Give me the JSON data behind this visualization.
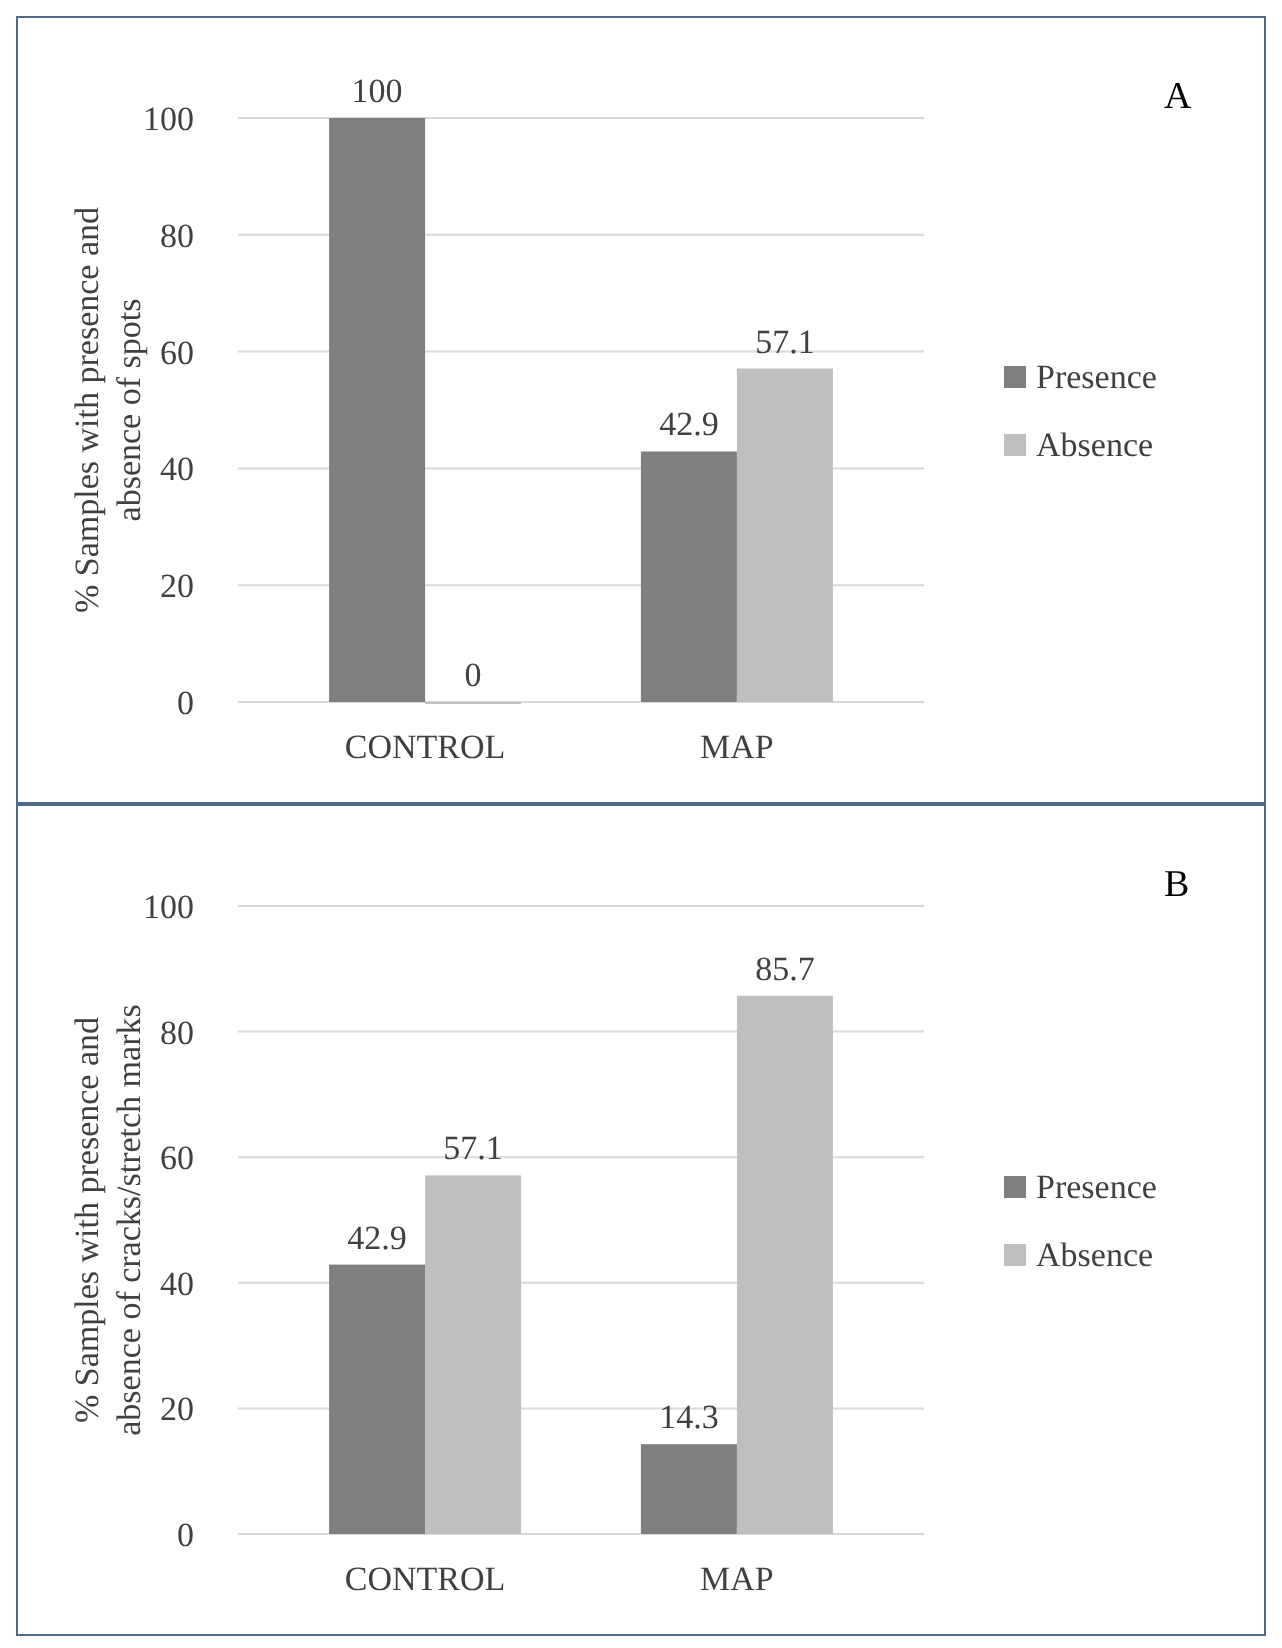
{
  "chart_data": [
    {
      "type": "bar",
      "ylabel": "% Samples with presence and absence of spots",
      "categories": [
        "CONTROL",
        "MAP"
      ],
      "series": [
        {
          "name": "Presence",
          "color": "#7f7f7f",
          "values": [
            100,
            42.9
          ]
        },
        {
          "name": "Absence",
          "color": "#bfbfbf",
          "values": [
            0,
            57.1
          ]
        }
      ],
      "ylim": [
        0,
        100
      ],
      "yticks": [
        0,
        20,
        40,
        60,
        80,
        100
      ],
      "grid": "y",
      "legend": "right",
      "data_labels": true,
      "annotations": [
        "A"
      ]
    },
    {
      "type": "bar",
      "ylabel": "% Samples with presence and absence of cracks/stretch marks",
      "categories": [
        "CONTROL",
        "MAP"
      ],
      "series": [
        {
          "name": "Presence",
          "color": "#7f7f7f",
          "values": [
            42.9,
            14.3
          ]
        },
        {
          "name": "Absence",
          "color": "#bfbfbf",
          "values": [
            57.1,
            85.7
          ]
        }
      ],
      "ylim": [
        0,
        100
      ],
      "yticks": [
        0,
        20,
        40,
        60,
        80,
        100
      ],
      "grid": "y",
      "legend": "right",
      "data_labels": true,
      "annotations": [
        "B"
      ]
    }
  ]
}
